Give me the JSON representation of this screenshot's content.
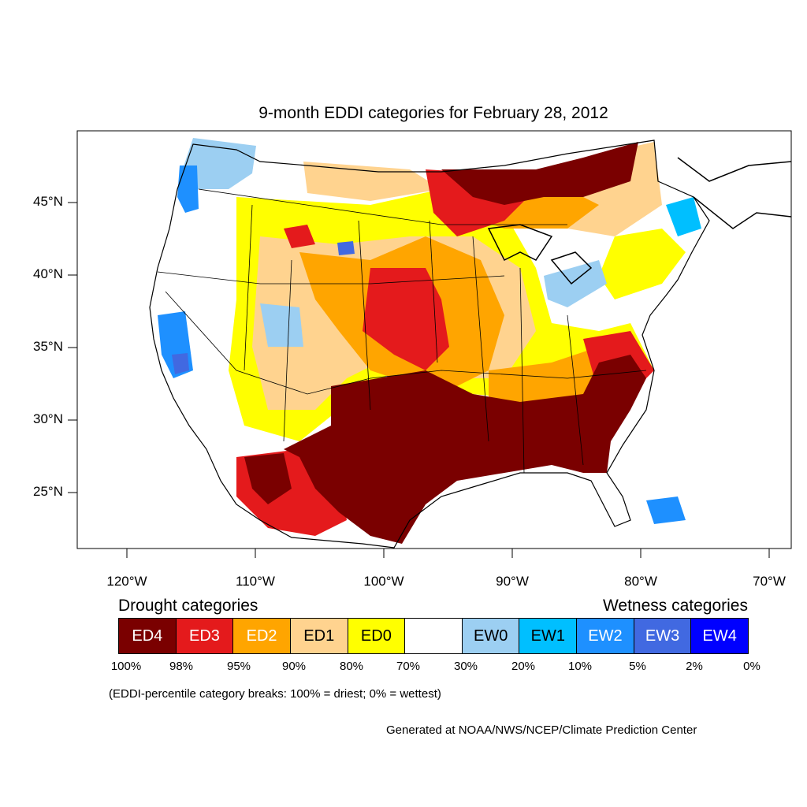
{
  "title": "9-month EDDI categories for February 28, 2012",
  "lat_labels": [
    "45°N",
    "40°N",
    "35°N",
    "30°N",
    "25°N"
  ],
  "lon_labels": [
    "120°W",
    "110°W",
    "100°W",
    "90°W",
    "80°W",
    "70°W"
  ],
  "legend": {
    "drought_heading": "Drought categories",
    "wetness_heading": "Wetness categories",
    "categories": [
      {
        "label": "ED4",
        "color": "#7a0000",
        "text_color": "#ffffff"
      },
      {
        "label": "ED3",
        "color": "#e41a1c",
        "text_color": "#ffffff"
      },
      {
        "label": "ED2",
        "color": "#ffa500",
        "text_color": "#ffffff"
      },
      {
        "label": "ED1",
        "color": "#ffd38f",
        "text_color": "#000000"
      },
      {
        "label": "ED0",
        "color": "#ffff00",
        "text_color": "#000000"
      },
      {
        "label": "",
        "color": "#ffffff",
        "text_color": "#000000"
      },
      {
        "label": "EW0",
        "color": "#9ccff2",
        "text_color": "#000000"
      },
      {
        "label": "EW1",
        "color": "#00bfff",
        "text_color": "#000000"
      },
      {
        "label": "EW2",
        "color": "#1e90ff",
        "text_color": "#ffffff"
      },
      {
        "label": "EW3",
        "color": "#4169e1",
        "text_color": "#ffffff"
      },
      {
        "label": "EW4",
        "color": "#0000ff",
        "text_color": "#ffffff"
      }
    ],
    "breaks": [
      "100%",
      "98%",
      "95%",
      "90%",
      "80%",
      "70%",
      "30%",
      "20%",
      "10%",
      "5%",
      "2%",
      "0%"
    ]
  },
  "note": "(EDDI-percentile category breaks: 100% = driest; 0% = wettest)",
  "credit": "Generated at NOAA/NWS/NCEP/Climate Prediction Center"
}
